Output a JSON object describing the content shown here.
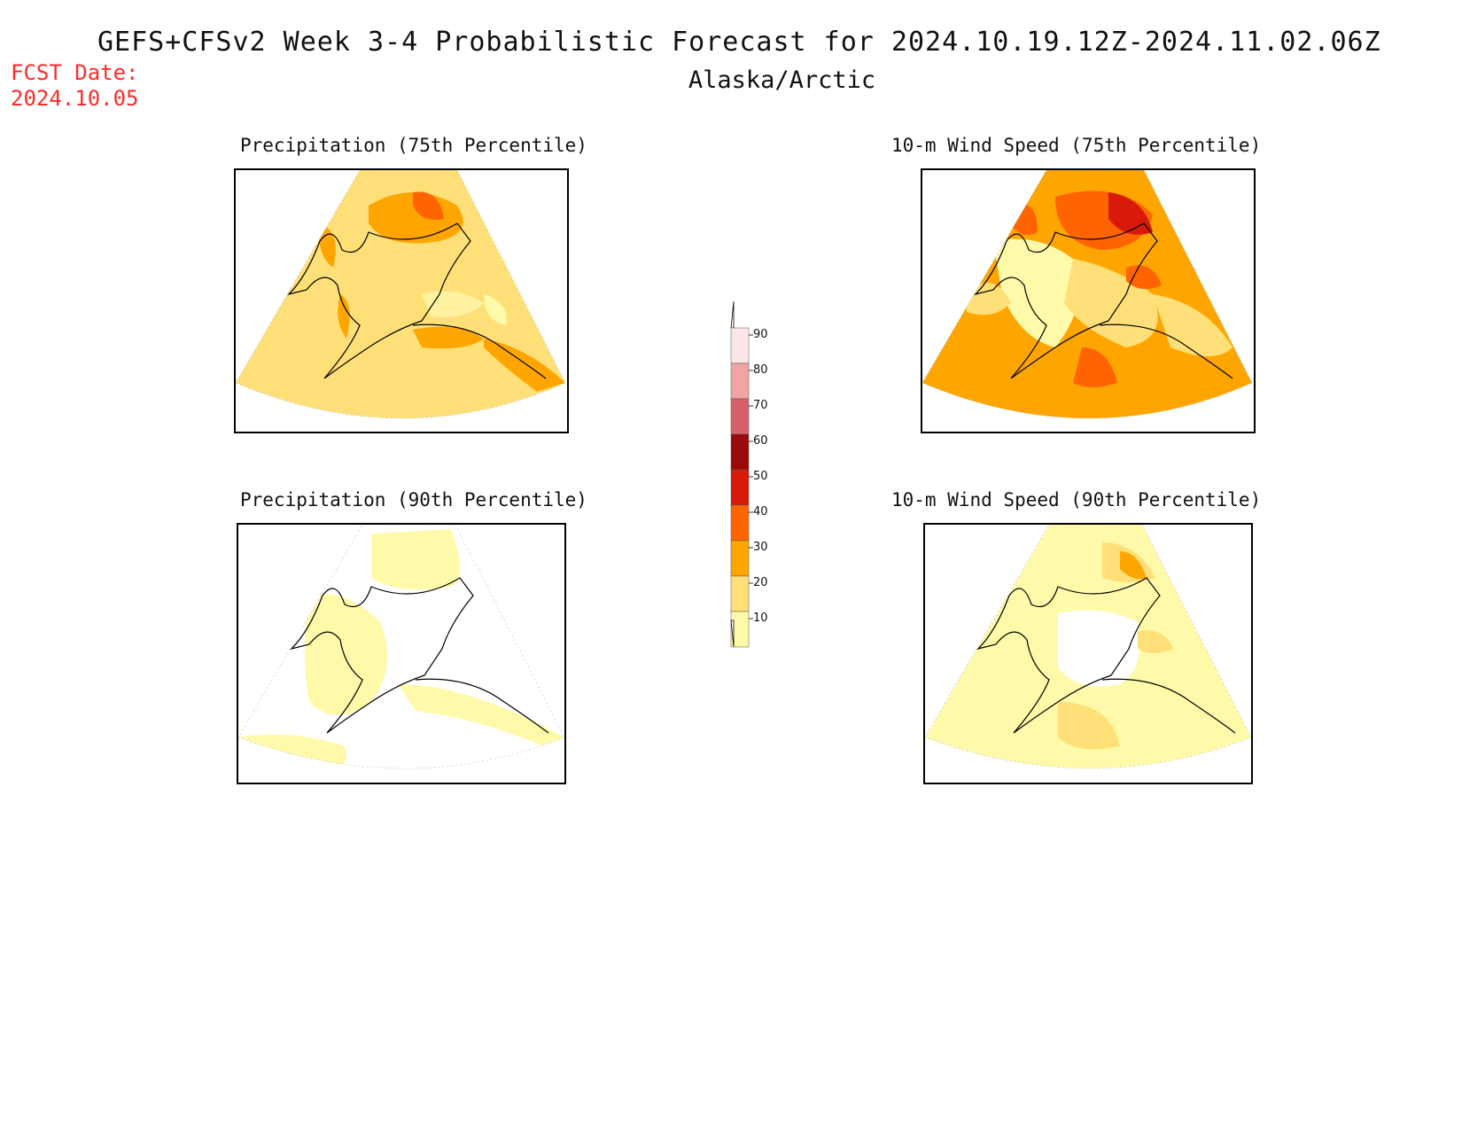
{
  "header": {
    "title": "GEFS+CFSv2 Week 3-4 Probabilistic Forecast for 2024.10.19.12Z-2024.11.02.06Z",
    "region": "Alaska/Arctic",
    "fcst_label": "FCST Date:",
    "fcst_date": "2024.10.05"
  },
  "panels": [
    {
      "title": "Precipitation (75th Percentile)",
      "field": "precip",
      "percentile": 75
    },
    {
      "title": "10-m Wind Speed (75th Percentile)",
      "field": "wind",
      "percentile": 75
    },
    {
      "title": "Precipitation (90th Percentile)",
      "field": "precip",
      "percentile": 90
    },
    {
      "title": "10-m Wind Speed (90th Percentile)",
      "field": "wind",
      "percentile": 90
    }
  ],
  "colorbar": {
    "levels": [
      "90",
      "80",
      "70",
      "60",
      "50",
      "40",
      "30",
      "20",
      "10"
    ],
    "colors": [
      "#fde6e6",
      "#f2a4a4",
      "#d8606a",
      "#9a0a0a",
      "#d81a0a",
      "#ff6400",
      "#ffa500",
      "#ffe078",
      "#fffaaa"
    ]
  },
  "palette": {
    "lightest": "#fffaaa",
    "light": "#ffe078",
    "medium": "#ffa500",
    "orange_red": "#ff6400",
    "red": "#d81a0a",
    "fcst_color": "#ff2a2a"
  }
}
